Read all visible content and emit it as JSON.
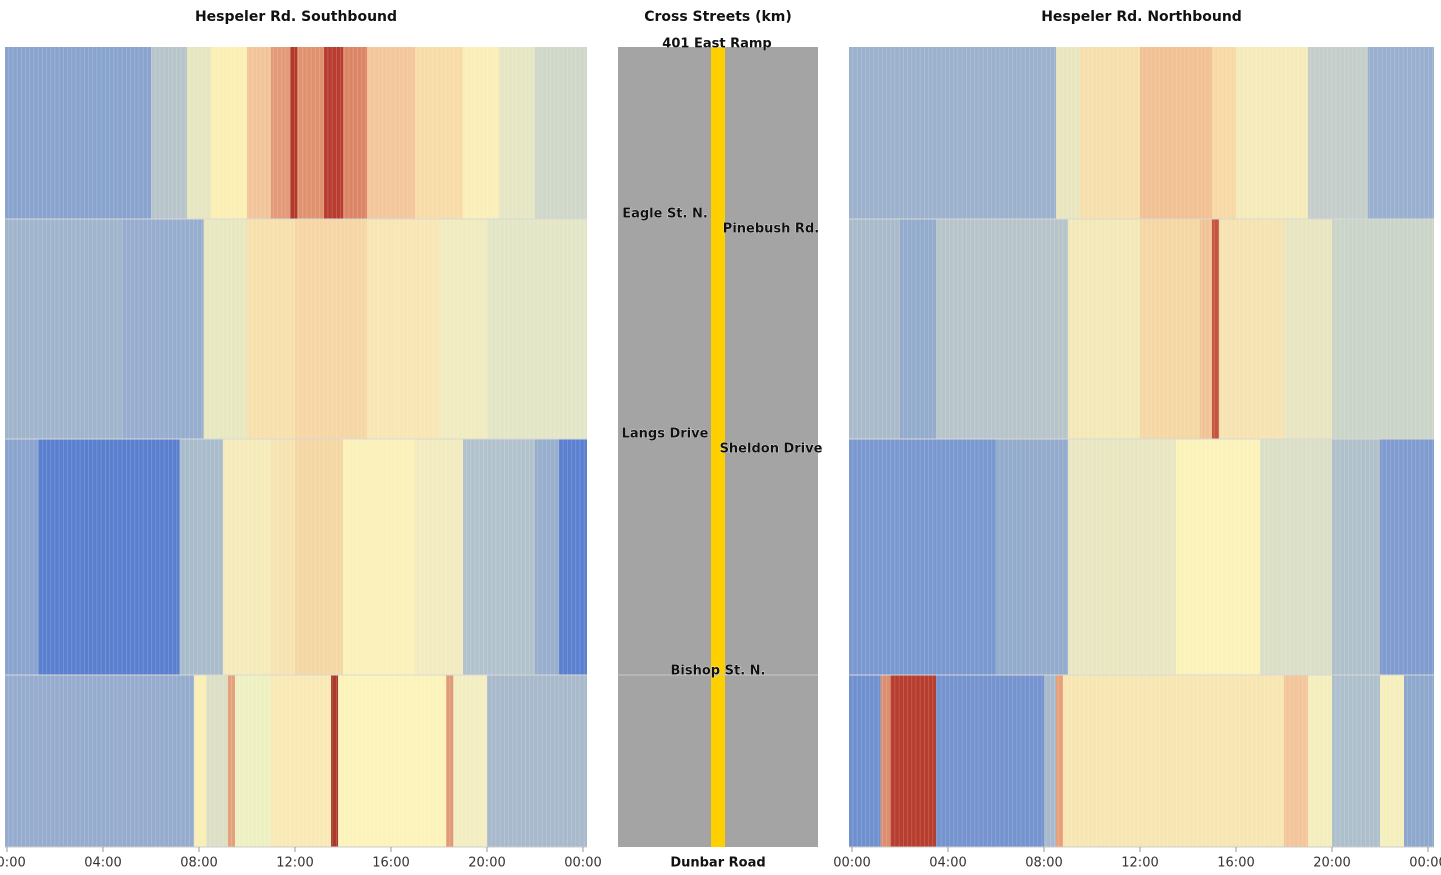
{
  "chart_data": [
    {
      "type": "heatmap",
      "title": "Hespeler Rd. Southbound",
      "xlim": [
        0,
        24
      ],
      "xticks": [
        {
          "value": 0,
          "label": "00:00"
        },
        {
          "value": 4,
          "label": "04:00"
        },
        {
          "value": 8,
          "label": "08:00"
        },
        {
          "value": 12,
          "label": "12:00"
        },
        {
          "value": 16,
          "label": "16:00"
        },
        {
          "value": 20,
          "label": "20:00"
        },
        {
          "value": 24,
          "label": "00:00"
        }
      ],
      "rows": [
        [
          {
            "start": 0,
            "end": 6,
            "color": "#89a3cf"
          },
          {
            "start": 6,
            "end": 7.5,
            "color": "#b7c4ca"
          },
          {
            "start": 7.5,
            "end": 8.5,
            "color": "#e6e6c0"
          },
          {
            "start": 8.5,
            "end": 10,
            "color": "#fbefb4"
          },
          {
            "start": 10,
            "end": 11,
            "color": "#f2c49a"
          },
          {
            "start": 11,
            "end": 11.8,
            "color": "#e39a78"
          },
          {
            "start": 11.8,
            "end": 12.1,
            "color": "#b23a2c"
          },
          {
            "start": 12.1,
            "end": 13.2,
            "color": "#e0926f"
          },
          {
            "start": 13.2,
            "end": 14,
            "color": "#b83d30"
          },
          {
            "start": 14,
            "end": 15,
            "color": "#dc8566"
          },
          {
            "start": 15,
            "end": 17,
            "color": "#f3c69c"
          },
          {
            "start": 17,
            "end": 19,
            "color": "#f8dca8"
          },
          {
            "start": 19,
            "end": 20.5,
            "color": "#faefb8"
          },
          {
            "start": 20.5,
            "end": 22,
            "color": "#e6e6c4"
          },
          {
            "start": 22,
            "end": 24,
            "color": "#cfd7c9"
          }
        ],
        [
          {
            "start": 0,
            "end": 4.8,
            "color": "#a0b4cc"
          },
          {
            "start": 4.8,
            "end": 8.2,
            "color": "#97adcf"
          },
          {
            "start": 8.2,
            "end": 10,
            "color": "#e8e8c0"
          },
          {
            "start": 10,
            "end": 12,
            "color": "#f8e0ad"
          },
          {
            "start": 12,
            "end": 15,
            "color": "#f6d6a4"
          },
          {
            "start": 15,
            "end": 18,
            "color": "#f8e6b4"
          },
          {
            "start": 18,
            "end": 20,
            "color": "#f1ebc0"
          },
          {
            "start": 20,
            "end": 24,
            "color": "#e3e6c6"
          }
        ],
        [
          {
            "start": 0,
            "end": 1.3,
            "color": "#8aa3cf"
          },
          {
            "start": 1.3,
            "end": 7.2,
            "color": "#5a7fcf"
          },
          {
            "start": 7.2,
            "end": 9,
            "color": "#a9bccb"
          },
          {
            "start": 9,
            "end": 11,
            "color": "#f5ebba"
          },
          {
            "start": 11,
            "end": 12,
            "color": "#f7e3b1"
          },
          {
            "start": 12,
            "end": 14,
            "color": "#f4d7a3"
          },
          {
            "start": 14,
            "end": 17,
            "color": "#fbf1ba"
          },
          {
            "start": 17,
            "end": 19,
            "color": "#f2ebc0"
          },
          {
            "start": 19,
            "end": 22,
            "color": "#b2c2cc"
          },
          {
            "start": 22,
            "end": 23,
            "color": "#97afcd"
          },
          {
            "start": 23,
            "end": 24,
            "color": "#5b80cf"
          }
        ],
        [
          {
            "start": 0,
            "end": 7.8,
            "color": "#96acce"
          },
          {
            "start": 7.8,
            "end": 8.3,
            "color": "#f9efb5"
          },
          {
            "start": 8.3,
            "end": 9.2,
            "color": "#dcdfc4"
          },
          {
            "start": 9.2,
            "end": 9.5,
            "color": "#e4a27c"
          },
          {
            "start": 9.5,
            "end": 11,
            "color": "#eef0c2"
          },
          {
            "start": 11,
            "end": 13.5,
            "color": "#f9e9b4"
          },
          {
            "start": 13.5,
            "end": 13.8,
            "color": "#a93a2d"
          },
          {
            "start": 13.8,
            "end": 18.3,
            "color": "#fcf3ba"
          },
          {
            "start": 18.3,
            "end": 18.6,
            "color": "#e19a76"
          },
          {
            "start": 18.6,
            "end": 20,
            "color": "#f2eec2"
          },
          {
            "start": 20,
            "end": 24,
            "color": "#a8b9cc"
          }
        ]
      ]
    },
    {
      "type": "heatmap",
      "title": "Hespeler Rd. Northbound",
      "xlim": [
        0,
        24
      ],
      "xticks": [
        {
          "value": 0,
          "label": "00:00"
        },
        {
          "value": 4,
          "label": "04:00"
        },
        {
          "value": 8,
          "label": "08:00"
        },
        {
          "value": 12,
          "label": "12:00"
        },
        {
          "value": 16,
          "label": "16:00"
        },
        {
          "value": 20,
          "label": "20:00"
        },
        {
          "value": 24,
          "label": "00:00"
        }
      ],
      "rows": [
        [
          {
            "start": 0,
            "end": 8.5,
            "color": "#9cb1cd"
          },
          {
            "start": 8.5,
            "end": 9.5,
            "color": "#e9e6bf"
          },
          {
            "start": 9.5,
            "end": 12,
            "color": "#f6dfac"
          },
          {
            "start": 12,
            "end": 15,
            "color": "#f1c093"
          },
          {
            "start": 15,
            "end": 16,
            "color": "#f7d9a6"
          },
          {
            "start": 16,
            "end": 19,
            "color": "#f5ebba"
          },
          {
            "start": 19,
            "end": 21.5,
            "color": "#c4cdc9"
          },
          {
            "start": 21.5,
            "end": 24,
            "color": "#99afcf"
          }
        ],
        [
          {
            "start": 0,
            "end": 2,
            "color": "#a9bbcb"
          },
          {
            "start": 2,
            "end": 3.5,
            "color": "#93abcd"
          },
          {
            "start": 3.5,
            "end": 9,
            "color": "#b7c4c9"
          },
          {
            "start": 9,
            "end": 12,
            "color": "#f3e9b8"
          },
          {
            "start": 12,
            "end": 14.5,
            "color": "#f5d7a3"
          },
          {
            "start": 14.5,
            "end": 15,
            "color": "#f0c396"
          },
          {
            "start": 15,
            "end": 15.3,
            "color": "#c4543b"
          },
          {
            "start": 15.3,
            "end": 18,
            "color": "#f6e3b1"
          },
          {
            "start": 18,
            "end": 20,
            "color": "#e8e6c0"
          },
          {
            "start": 20,
            "end": 24,
            "color": "#cbd4c8"
          }
        ],
        [
          {
            "start": 0,
            "end": 6,
            "color": "#7a98d0"
          },
          {
            "start": 6,
            "end": 9,
            "color": "#93abcd"
          },
          {
            "start": 9,
            "end": 13.5,
            "color": "#e8e7c2"
          },
          {
            "start": 13.5,
            "end": 17,
            "color": "#fbf2ba"
          },
          {
            "start": 17,
            "end": 20,
            "color": "#dbdfc6"
          },
          {
            "start": 20,
            "end": 22,
            "color": "#b0c0cb"
          },
          {
            "start": 22,
            "end": 24,
            "color": "#7f9bd0"
          }
        ],
        [
          {
            "start": 0,
            "end": 1.2,
            "color": "#6f90cf"
          },
          {
            "start": 1.2,
            "end": 1.6,
            "color": "#dc8e6f"
          },
          {
            "start": 1.6,
            "end": 3.5,
            "color": "#b73d2f"
          },
          {
            "start": 3.5,
            "end": 8,
            "color": "#7593cf"
          },
          {
            "start": 8,
            "end": 8.5,
            "color": "#a7b9cb"
          },
          {
            "start": 8.5,
            "end": 8.8,
            "color": "#e6a07a"
          },
          {
            "start": 8.8,
            "end": 18,
            "color": "#f8e6b2"
          },
          {
            "start": 18,
            "end": 19,
            "color": "#f2c69a"
          },
          {
            "start": 19,
            "end": 20,
            "color": "#f4eebd"
          },
          {
            "start": 20,
            "end": 22,
            "color": "#aebfcc"
          },
          {
            "start": 22,
            "end": 23,
            "color": "#f5efbd"
          },
          {
            "start": 23,
            "end": 24,
            "color": "#8ea8cd"
          }
        ]
      ]
    }
  ],
  "cross_streets": {
    "title": "Cross Streets (km)",
    "streets": [
      "401 East Ramp",
      "Eagle St. N.",
      "Pinebush Rd.",
      "Langs Drive",
      "Sheldon Drive",
      "Bishop St. N.",
      "Dunbar Road"
    ]
  }
}
